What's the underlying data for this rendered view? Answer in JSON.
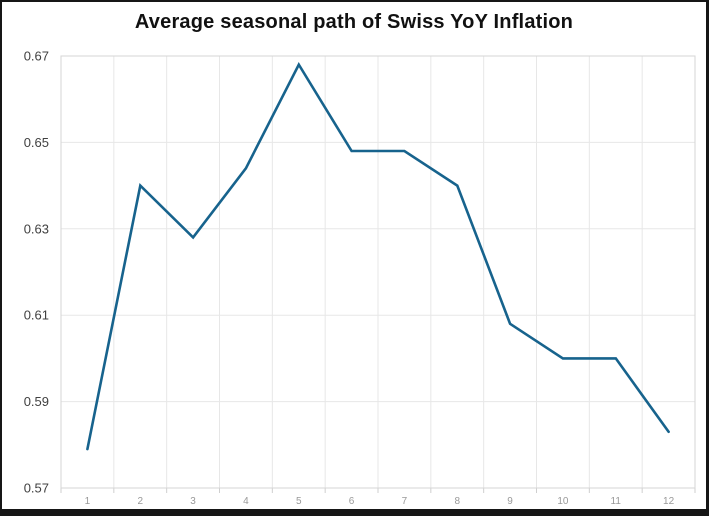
{
  "chart_data": {
    "type": "line",
    "title": "Average seasonal path of Swiss YoY Inflation",
    "categories": [
      "1",
      "2",
      "3",
      "4",
      "5",
      "6",
      "7",
      "8",
      "9",
      "10",
      "11",
      "12"
    ],
    "values": [
      0.579,
      0.64,
      0.628,
      0.644,
      0.668,
      0.648,
      0.648,
      0.64,
      0.608,
      0.6,
      0.6,
      0.583
    ],
    "xlabel": "",
    "ylabel": "",
    "ylim": [
      0.57,
      0.67
    ],
    "yticks": [
      0.57,
      0.59,
      0.61,
      0.63,
      0.65,
      0.67
    ],
    "ytick_decimals": 2,
    "grid": true,
    "legend": false,
    "colors": {
      "line": "#17638d",
      "grid": "#e7e7e7",
      "plot_border": "#d5d5d5",
      "tick": "#cfcfcf",
      "y_tick_label": "#404040",
      "x_tick_label": "#999999",
      "title": "#111111",
      "frame_border": "#161616",
      "background": "#ffffff"
    }
  }
}
